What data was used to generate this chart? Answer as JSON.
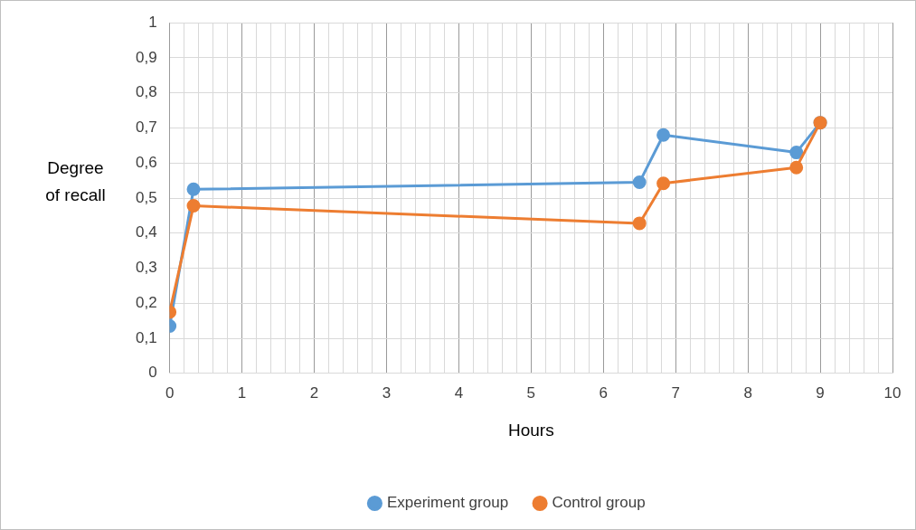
{
  "chart_data": {
    "type": "line",
    "xlabel": "Hours",
    "ylabel": "Degree of recall",
    "legend": "bottom",
    "marker": "circle",
    "line_style": "solid",
    "grid": true,
    "xlim": [
      0,
      10
    ],
    "ylim": [
      0,
      1
    ],
    "xticks": [
      0,
      {
        "value": 0.2,
        "label": null
      },
      {
        "value": 0.4,
        "label": null
      },
      {
        "value": 0.6,
        "label": null
      },
      {
        "value": 0.8,
        "label": null
      },
      1,
      {
        "value": 1.2,
        "label": null
      },
      {
        "value": 1.4,
        "label": null
      },
      {
        "value": 1.6,
        "label": null
      },
      {
        "value": 1.8,
        "label": null
      },
      2,
      {
        "value": 2.2,
        "label": null
      },
      {
        "value": 2.4,
        "label": null
      },
      {
        "value": 2.6,
        "label": null
      },
      {
        "value": 2.8,
        "label": null
      },
      3,
      {
        "value": 3.2,
        "label": null
      },
      {
        "value": 3.4,
        "label": null
      },
      {
        "value": 3.6,
        "label": null
      },
      {
        "value": 3.8,
        "label": null
      },
      4,
      {
        "value": 4.2,
        "label": null
      },
      {
        "value": 4.4,
        "label": null
      },
      {
        "value": 4.6,
        "label": null
      },
      {
        "value": 4.8,
        "label": null
      },
      5,
      {
        "value": 5.2,
        "label": null
      },
      {
        "value": 5.4,
        "label": null
      },
      {
        "value": 5.6,
        "label": null
      },
      {
        "value": 5.8,
        "label": null
      },
      6,
      {
        "value": 6.2,
        "label": null
      },
      {
        "value": 6.4,
        "label": null
      },
      {
        "value": 6.6,
        "label": null
      },
      {
        "value": 6.8,
        "label": null
      },
      7,
      {
        "value": 7.2,
        "label": null
      },
      {
        "value": 7.4,
        "label": null
      },
      {
        "value": 7.6,
        "label": null
      },
      {
        "value": 7.8,
        "label": null
      },
      8,
      {
        "value": 8.2,
        "label": null
      },
      {
        "value": 8.4,
        "label": null
      },
      {
        "value": 8.6,
        "label": null
      },
      {
        "value": 8.8,
        "label": null
      },
      9,
      {
        "value": 9.2,
        "label": null
      },
      {
        "value": 9.4,
        "label": null
      },
      {
        "value": 9.6,
        "label": null
      },
      {
        "value": 9.8,
        "label": null
      },
      10
    ],
    "yticks": [
      0,
      {
        "value": 0.1,
        "label": "0,1"
      },
      {
        "value": 0.2,
        "label": "0,2"
      },
      {
        "value": 0.3,
        "label": "0,3"
      },
      {
        "value": 0.4,
        "label": "0,4"
      },
      {
        "value": 0.5,
        "label": "0,5"
      },
      {
        "value": 0.6,
        "label": "0,6"
      },
      {
        "value": 0.7,
        "label": "0,7"
      },
      {
        "value": 0.8,
        "label": "0,8"
      },
      {
        "value": 0.9,
        "label": "0,9"
      },
      1
    ],
    "x": [
      0,
      0.33,
      6.5,
      6.83,
      8.67,
      9
    ],
    "series": [
      {
        "name": "Experiment group",
        "color": "#5b9bd5",
        "values": [
          0.135,
          0.525,
          0.545,
          0.68,
          0.63,
          0.715
        ]
      },
      {
        "name": "Control group",
        "color": "#ed7d31",
        "values": [
          0.175,
          0.478,
          0.428,
          0.542,
          0.587,
          0.715
        ]
      }
    ]
  }
}
